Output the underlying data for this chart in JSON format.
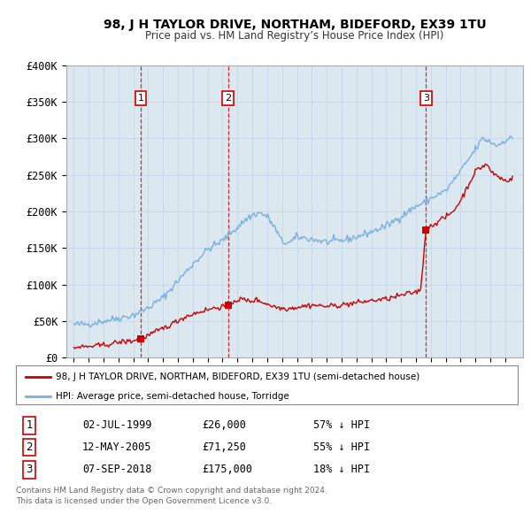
{
  "title": "98, J H TAYLOR DRIVE, NORTHAM, BIDEFORD, EX39 1TU",
  "subtitle": "Price paid vs. HM Land Registry’s House Price Index (HPI)",
  "ylim": [
    0,
    400000
  ],
  "yticks": [
    0,
    50000,
    100000,
    150000,
    200000,
    250000,
    300000,
    350000,
    400000
  ],
  "ytick_labels": [
    "£0",
    "£50K",
    "£100K",
    "£150K",
    "£200K",
    "£250K",
    "£300K",
    "£350K",
    "£400K"
  ],
  "sale_dates_num": [
    1999.5,
    2005.36,
    2018.68
  ],
  "sale_prices": [
    26000,
    71250,
    175000
  ],
  "sale_labels": [
    "1",
    "2",
    "3"
  ],
  "legend_line1": "98, J H TAYLOR DRIVE, NORTHAM, BIDEFORD, EX39 1TU (semi-detached house)",
  "legend_line2": "HPI: Average price, semi-detached house, Torridge",
  "table_rows": [
    [
      "1",
      "02-JUL-1999",
      "£26,000",
      "57% ↓ HPI"
    ],
    [
      "2",
      "12-MAY-2005",
      "£71,250",
      "55% ↓ HPI"
    ],
    [
      "3",
      "07-SEP-2018",
      "£175,000",
      "18% ↓ HPI"
    ]
  ],
  "footer_line1": "Contains HM Land Registry data © Crown copyright and database right 2024.",
  "footer_line2": "This data is licensed under the Open Government Licence v3.0.",
  "red_color": "#cc0000",
  "blue_color": "#7aade0",
  "grid_color": "#c8d8e8",
  "bg_color": "#ffffff",
  "plot_bg": "#dce8f0"
}
